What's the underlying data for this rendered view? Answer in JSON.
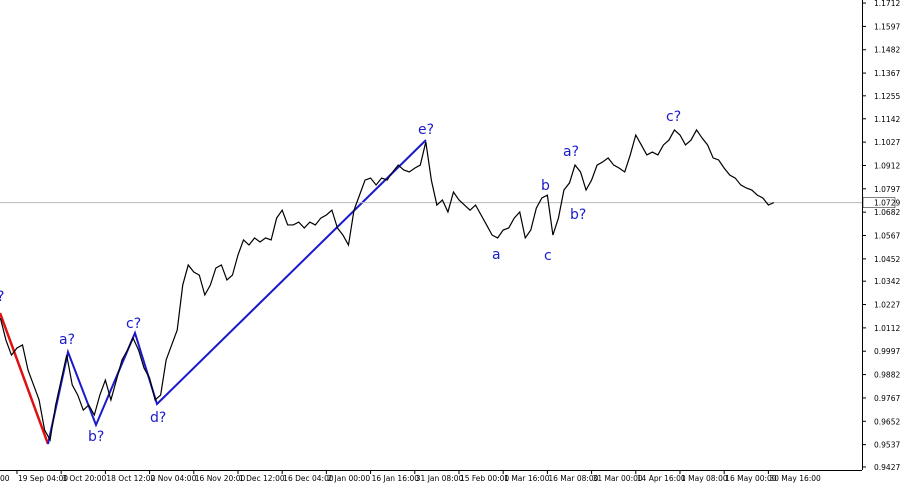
{
  "chart_data": {
    "type": "line",
    "color": "#000000",
    "categories": [
      "00",
      null,
      null,
      "19 Sep 04:00",
      null,
      null,
      null,
      null,
      null,
      null,
      null,
      "3 Oct 20:00",
      null,
      null,
      null,
      null,
      null,
      null,
      null,
      "18 Oct 12:00",
      null,
      null,
      null,
      null,
      null,
      null,
      null,
      "2 Nov 04:00",
      null,
      null,
      null,
      null,
      null,
      null,
      null,
      "16 Nov 20:00",
      null,
      null,
      null,
      null,
      null,
      null,
      null,
      "1 Dec 12:00",
      null,
      null,
      null,
      null,
      null,
      null,
      null,
      "16 Dec 04:00",
      null,
      null,
      null,
      null,
      null,
      null,
      null,
      "2 Jan 00:00",
      null,
      null,
      null,
      null,
      null,
      null,
      null,
      "16 Jan 16:00",
      null,
      null,
      null,
      null,
      null,
      null,
      null,
      "31 Jan 08:00",
      null,
      null,
      null,
      null,
      null,
      null,
      null,
      "15 Feb 00:00",
      null,
      null,
      null,
      null,
      null,
      null,
      null,
      "1 Mar 16:00",
      null,
      null,
      null,
      null,
      null,
      null,
      null,
      "16 Mar 08:00",
      null,
      null,
      null,
      null,
      null,
      null,
      null,
      "31 Mar 00:00",
      null,
      null,
      null,
      null,
      null,
      null,
      null,
      "14 Apr 16:00",
      null,
      null,
      null,
      null,
      null,
      null,
      null,
      "1 May 08:00",
      null,
      null,
      null,
      null,
      null,
      null,
      null,
      "16 May 00:00",
      null,
      null,
      null,
      null,
      null,
      null,
      null,
      "30 May 16:00",
      null
    ],
    "values": [
      1.016,
      1.0052,
      0.9978,
      1.0013,
      1.0028,
      0.9904,
      0.9831,
      0.9757,
      0.9609,
      0.956,
      0.9732,
      0.9855,
      0.9978,
      0.9831,
      0.9781,
      0.9707,
      0.9732,
      0.9683,
      0.9781,
      0.9855,
      0.9757,
      0.9855,
      0.9954,
      1.0003,
      1.0062,
      1.0003,
      0.9914,
      0.9865,
      0.9757,
      0.9781,
      0.9954,
      1.0028,
      1.0101,
      1.0323,
      1.0422,
      1.0387,
      1.0372,
      1.0274,
      1.0323,
      1.0407,
      1.0422,
      1.0348,
      1.0372,
      1.0471,
      1.0545,
      1.052,
      1.0555,
      1.0535,
      1.0555,
      1.0545,
      1.0653,
      1.0692,
      1.0619,
      1.0619,
      1.0633,
      1.0604,
      1.0633,
      1.0619,
      1.0653,
      1.0668,
      1.0692,
      1.0604,
      1.0569,
      1.052,
      1.0692,
      1.0766,
      1.084,
      1.085,
      1.0816,
      1.085,
      1.084,
      1.088,
      1.0914,
      1.089,
      1.088,
      1.0899,
      1.0914,
      1.1028,
      1.084,
      1.0717,
      1.0742,
      1.0683,
      1.0781,
      1.0742,
      1.0717,
      1.0692,
      1.0717,
      1.0668,
      1.0619,
      1.0569,
      1.0555,
      1.0594,
      1.0604,
      1.0653,
      1.0683,
      1.0555,
      1.0594,
      1.0702,
      1.0752,
      1.0766,
      1.0569,
      1.0653,
      1.0791,
      1.0826,
      1.0914,
      1.088,
      1.0791,
      1.084,
      1.0914,
      1.0929,
      1.0949,
      1.0914,
      1.0899,
      1.088,
      1.0964,
      1.1062,
      1.1013,
      1.0964,
      1.0978,
      1.0964,
      1.1013,
      1.1037,
      1.1087,
      1.1062,
      1.1013,
      1.1037,
      1.1087,
      1.1047,
      1.1013,
      1.0949,
      1.0939,
      1.0899,
      1.0865,
      1.085,
      1.0816,
      1.0801,
      1.0791,
      1.0766,
      1.0752,
      1.0717,
      1.0729
    ],
    "ylim": [
      0.9412,
      1.1727
    ],
    "yticks": [
      1.1712,
      1.1597,
      1.1482,
      1.1367,
      1.1255,
      1.1142,
      1.1027,
      1.0912,
      1.0797,
      1.0682,
      1.0567,
      1.0452,
      1.0342,
      1.0227,
      1.0112,
      0.9997,
      0.9882,
      0.9767,
      0.9652,
      0.9537,
      0.9427
    ],
    "current_price": 1.0729,
    "annotations": [
      "?",
      "a?",
      "b?",
      "c?",
      "d?",
      "e?",
      "a",
      "b",
      "c",
      "a?",
      "b?",
      "c?"
    ]
  }
}
